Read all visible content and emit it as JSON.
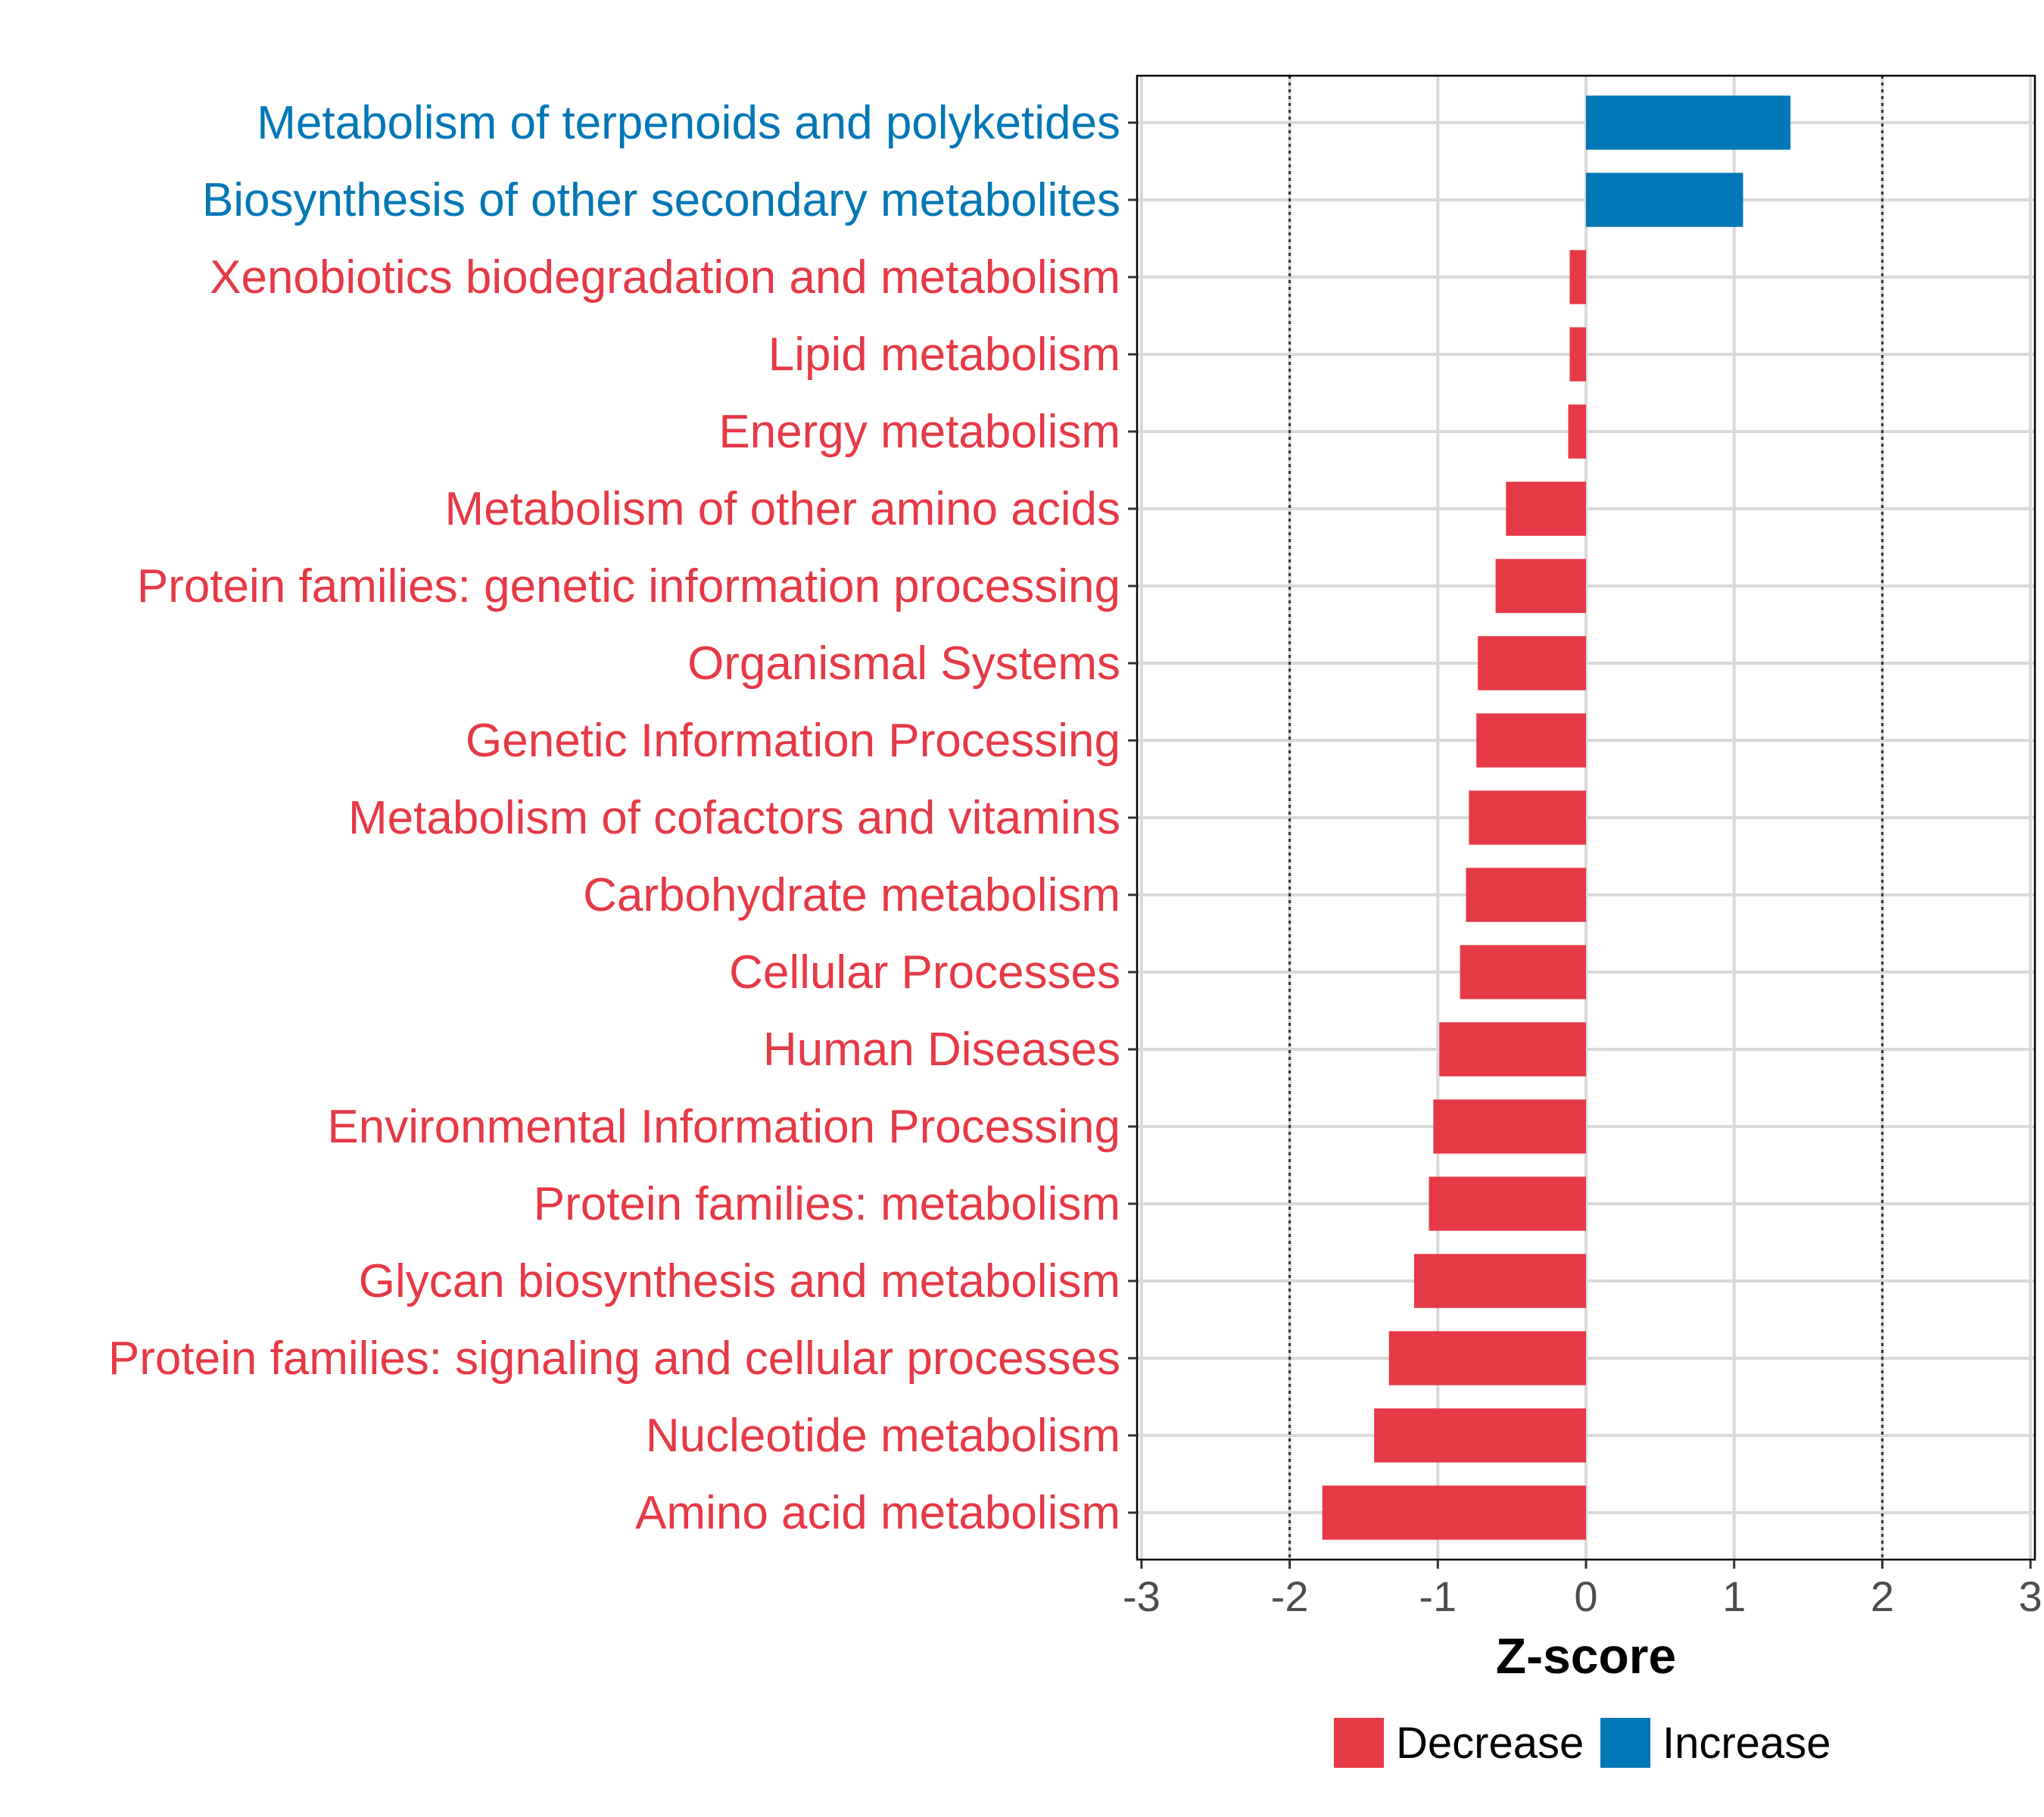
{
  "chart_data": {
    "type": "bar",
    "orientation": "horizontal",
    "xlabel": "Z-score",
    "ylabel": "",
    "xlim": [
      -3,
      3
    ],
    "xticks": [
      -3,
      -2,
      -1,
      0,
      1,
      2,
      3
    ],
    "xtick_labels": [
      "-3",
      "-2",
      "-1",
      "0",
      "1",
      "2",
      "3"
    ],
    "reference_lines": [
      -2,
      2
    ],
    "grid": true,
    "legend_position": "bottom",
    "legend": [
      {
        "name": "Decrease",
        "color": "#E63946"
      },
      {
        "name": "Increase",
        "color": "#0077B6"
      }
    ],
    "bars": [
      {
        "label": "Metabolism of terpenoids and polyketides",
        "value": 1.38,
        "group": "Increase"
      },
      {
        "label": "Biosynthesis of other secondary metabolites",
        "value": 1.06,
        "group": "Increase"
      },
      {
        "label": "Xenobiotics biodegradation and metabolism",
        "value": -0.11,
        "group": "Decrease"
      },
      {
        "label": "Lipid metabolism",
        "value": -0.11,
        "group": "Decrease"
      },
      {
        "label": "Energy metabolism",
        "value": -0.12,
        "group": "Decrease"
      },
      {
        "label": "Metabolism of other amino acids",
        "value": -0.54,
        "group": "Decrease"
      },
      {
        "label": "Protein families: genetic information processing",
        "value": -0.61,
        "group": "Decrease"
      },
      {
        "label": "Organismal Systems",
        "value": -0.73,
        "group": "Decrease"
      },
      {
        "label": "Genetic Information Processing",
        "value": -0.74,
        "group": "Decrease"
      },
      {
        "label": "Metabolism of cofactors and vitamins",
        "value": -0.79,
        "group": "Decrease"
      },
      {
        "label": "Carbohydrate metabolism",
        "value": -0.81,
        "group": "Decrease"
      },
      {
        "label": "Cellular Processes",
        "value": -0.85,
        "group": "Decrease"
      },
      {
        "label": "Human Diseases",
        "value": -0.99,
        "group": "Decrease"
      },
      {
        "label": "Environmental Information Processing",
        "value": -1.03,
        "group": "Decrease"
      },
      {
        "label": "Protein families: metabolism",
        "value": -1.06,
        "group": "Decrease"
      },
      {
        "label": "Glycan biosynthesis and metabolism",
        "value": -1.16,
        "group": "Decrease"
      },
      {
        "label": "Protein families: signaling and cellular processes",
        "value": -1.33,
        "group": "Decrease"
      },
      {
        "label": "Nucleotide metabolism",
        "value": -1.43,
        "group": "Decrease"
      },
      {
        "label": "Amino acid metabolism",
        "value": -1.78,
        "group": "Decrease"
      }
    ]
  }
}
